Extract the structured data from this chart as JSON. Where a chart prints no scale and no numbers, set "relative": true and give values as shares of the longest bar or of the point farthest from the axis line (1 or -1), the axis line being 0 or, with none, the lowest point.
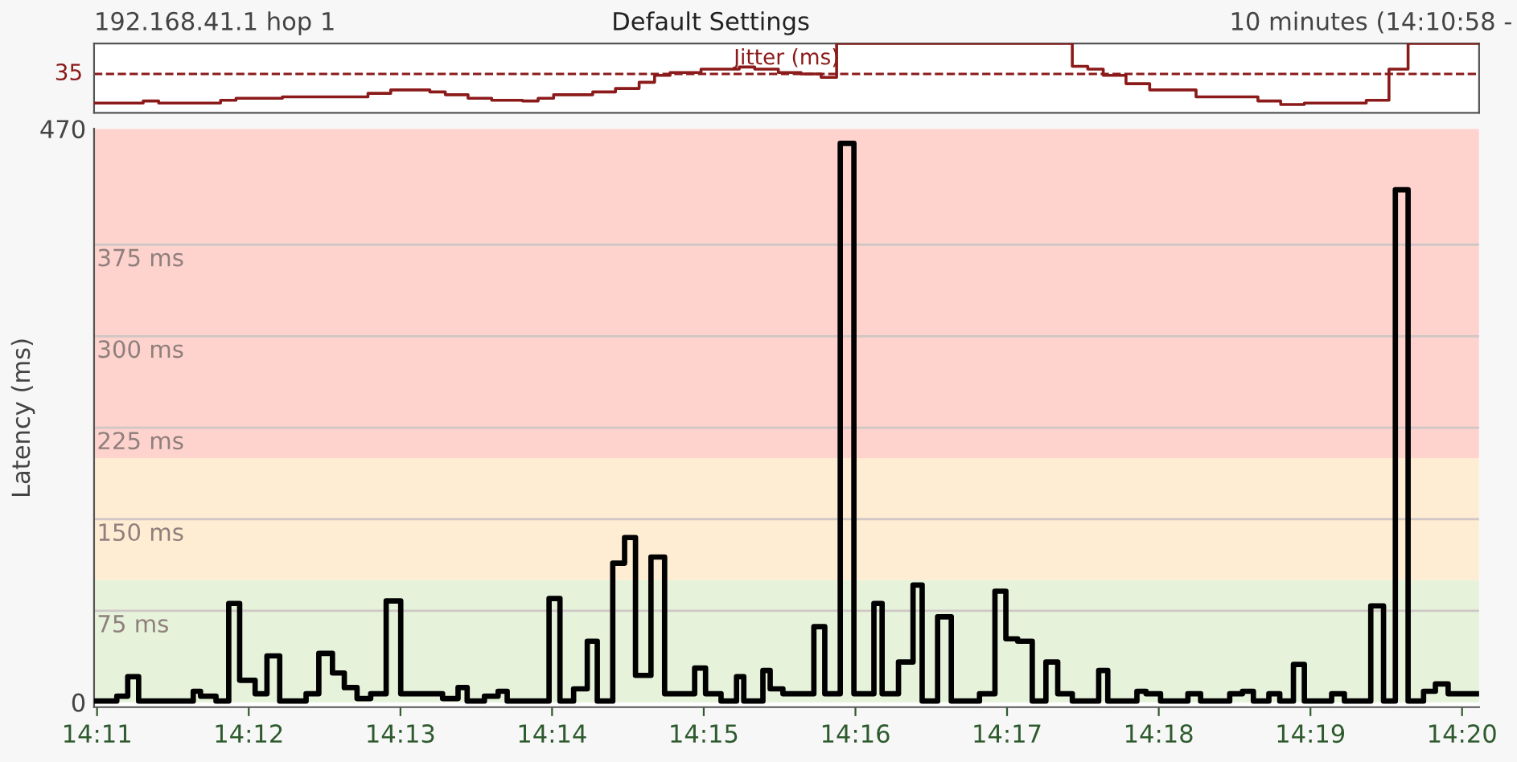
{
  "chart_data": [
    {
      "type": "step",
      "title": "Default Settings",
      "relative": true,
      "tick_labels": false,
      "xlim": [
        14.183,
        14.3352
      ],
      "annotations": [
        "192.168.41.1 hop 1",
        "10 minutes (14:10:58 -",
        "Jitter (ms)",
        "35"
      ],
      "ref_lines": [
        {
          "axis": "y",
          "value": 0.56,
          "color": "#8b1a1a",
          "line_style": "dashed"
        }
      ],
      "series": [
        {
          "color": "#8b1a1a",
          "x": [
            14.183,
            14.1884,
            14.1901,
            14.1969,
            14.1986,
            14.2037,
            14.2131,
            14.2156,
            14.2199,
            14.2216,
            14.2241,
            14.2267,
            14.2301,
            14.2318,
            14.2335,
            14.2378,
            14.2403,
            14.2429,
            14.2446,
            14.2463,
            14.2497,
            14.2539,
            14.2556,
            14.2582,
            14.2607,
            14.2629,
            14.2646,
            14.2905,
            14.2922,
            14.2939,
            14.2964,
            14.299,
            14.3041,
            14.3109,
            14.3134,
            14.316,
            14.3228,
            14.3253,
            14.3274,
            14.3352
          ],
          "values": [
            0.14,
            0.17,
            0.14,
            0.18,
            0.21,
            0.23,
            0.28,
            0.33,
            0.3,
            0.26,
            0.21,
            0.18,
            0.17,
            0.21,
            0.26,
            0.3,
            0.35,
            0.44,
            0.54,
            0.58,
            0.63,
            0.66,
            0.63,
            0.58,
            0.56,
            0.51,
            1.0,
            0.67,
            0.63,
            0.54,
            0.42,
            0.33,
            0.23,
            0.17,
            0.12,
            0.14,
            0.18,
            0.63,
            1.0,
            1.0
          ]
        }
      ]
    },
    {
      "type": "step",
      "ylabel": "Latency (ms)",
      "xlim": [
        14.183,
        14.3352
      ],
      "ylim": [
        -4,
        470
      ],
      "yticks": [
        0,
        470
      ],
      "xticks": [
        {
          "value": 14.18333,
          "label": "14:11"
        },
        {
          "value": 14.2,
          "label": "14:12"
        },
        {
          "value": 14.21667,
          "label": "14:13"
        },
        {
          "value": 14.23333,
          "label": "14:14"
        },
        {
          "value": 14.25,
          "label": "14:15"
        },
        {
          "value": 14.26667,
          "label": "14:16"
        },
        {
          "value": 14.28333,
          "label": "14:17"
        },
        {
          "value": 14.3,
          "label": "14:18"
        },
        {
          "value": 14.31667,
          "label": "14:19"
        },
        {
          "value": 14.33333,
          "label": "14:20"
        }
      ],
      "bands": [
        {
          "axis": "y",
          "from": 0,
          "to": 100,
          "color": "#e6f3da"
        },
        {
          "axis": "y",
          "from": 100,
          "to": 200,
          "color": "#feedd2"
        },
        {
          "axis": "y",
          "from": 200,
          "to": 470,
          "color": "#fed2cd"
        }
      ],
      "ref_lines": [
        {
          "axis": "y",
          "value": 75,
          "label": "75 ms",
          "color": "#cfc7c5"
        },
        {
          "axis": "y",
          "value": 150,
          "label": "150 ms",
          "color": "#cfc7c5"
        },
        {
          "axis": "y",
          "value": 225,
          "label": "225 ms",
          "color": "#cfc7c5"
        },
        {
          "axis": "y",
          "value": 300,
          "label": "300 ms",
          "color": "#cfc7c5"
        },
        {
          "axis": "y",
          "value": 375,
          "label": "375 ms",
          "color": "#cfc7c5"
        }
      ],
      "series": [
        {
          "color": "#000000",
          "x": [
            14.183,
            14.1855,
            14.1867,
            14.1879,
            14.1939,
            14.1947,
            14.1964,
            14.1978,
            14.199,
            14.2007,
            14.202,
            14.2034,
            14.2063,
            14.2077,
            14.2092,
            14.2105,
            14.2119,
            14.2134,
            14.2151,
            14.2167,
            14.2213,
            14.223,
            14.224,
            14.2259,
            14.2274,
            14.2284,
            14.233,
            14.2342,
            14.2357,
            14.2372,
            14.2383,
            14.24,
            14.2413,
            14.2425,
            14.2442,
            14.2457,
            14.249,
            14.2502,
            14.2519,
            14.2536,
            14.2544,
            14.2565,
            14.2573,
            14.2587,
            14.2621,
            14.2633,
            14.265,
            14.2665,
            14.2687,
            14.2696,
            14.2714,
            14.273,
            14.274,
            14.2757,
            14.2772,
            14.2803,
            14.282,
            14.2832,
            14.2845,
            14.2861,
            14.2876,
            14.2889,
            14.2905,
            14.2934,
            14.2944,
            14.2976,
            14.2986,
            14.3002,
            14.3032,
            14.3046,
            14.3078,
            14.3092,
            14.3104,
            14.3121,
            14.3133,
            14.3148,
            14.316,
            14.319,
            14.3204,
            14.3233,
            14.3247,
            14.326,
            14.3274,
            14.3291,
            14.3304,
            14.3318,
            14.3352
          ],
          "values": [
            1,
            5,
            21,
            1,
            9,
            5,
            1,
            81,
            18,
            7,
            38,
            1,
            7,
            40,
            24,
            12,
            3,
            7,
            83,
            7,
            3,
            12,
            1,
            5,
            9,
            1,
            85,
            1,
            11,
            50,
            1,
            114,
            135,
            22,
            119,
            7,
            28,
            7,
            1,
            21,
            1,
            26,
            11,
            7,
            62,
            7,
            458,
            7,
            81,
            7,
            33,
            96,
            1,
            70,
            1,
            7,
            91,
            52,
            50,
            1,
            33,
            7,
            1,
            26,
            1,
            9,
            7,
            1,
            7,
            1,
            7,
            9,
            1,
            7,
            1,
            31,
            1,
            7,
            1,
            79,
            1,
            420,
            1,
            9,
            15,
            7,
            7
          ]
        }
      ]
    }
  ]
}
